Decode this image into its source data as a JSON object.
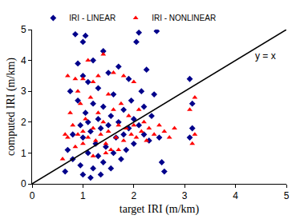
{
  "chart_data": {
    "type": "scatter",
    "x_label": "target IRI (m/km)",
    "y_label": "computed IRI (m/km)",
    "xlim": [
      0,
      5
    ],
    "ylim": [
      0,
      5
    ],
    "xticks": [
      0,
      1,
      2,
      3,
      4,
      5
    ],
    "yticks": [
      0,
      1,
      2,
      3,
      4,
      5
    ],
    "grid": false,
    "legend": "top",
    "annotations": [
      {
        "text": "y = x",
        "x": 4.35,
        "y": 4.15
      }
    ],
    "series": [
      {
        "name": "IRI - LINEAR",
        "color": "#00008b",
        "marker": "diamond",
        "x": [
          0.65,
          0.7,
          0.75,
          0.8,
          0.8,
          0.85,
          0.9,
          0.9,
          0.95,
          0.95,
          1.0,
          1.0,
          1.0,
          1.0,
          1.05,
          1.05,
          1.1,
          1.1,
          1.1,
          1.15,
          1.15,
          1.2,
          1.2,
          1.2,
          1.25,
          1.3,
          1.3,
          1.3,
          1.35,
          1.35,
          1.4,
          1.4,
          1.4,
          1.45,
          1.5,
          1.5,
          1.55,
          1.55,
          1.6,
          1.6,
          1.65,
          1.7,
          1.7,
          1.75,
          1.8,
          1.8,
          1.85,
          1.9,
          1.9,
          1.95,
          2.0,
          2.0,
          2.05,
          2.1,
          2.1,
          2.15,
          2.2,
          2.2,
          2.25,
          2.3,
          2.35,
          2.4,
          2.45,
          2.5,
          2.55,
          2.6,
          3.1,
          3.1,
          3.15,
          3.15
        ],
        "values": [
          0.4,
          1.1,
          3.0,
          0.8,
          1.6,
          4.85,
          2.7,
          3.9,
          0.6,
          1.9,
          0.3,
          1.5,
          3.5,
          4.6,
          2.3,
          4.8,
          1.0,
          2.0,
          3.3,
          0.2,
          1.7,
          0.5,
          2.6,
          4.0,
          1.3,
          0.9,
          2.1,
          3.1,
          0.3,
          1.8,
          0.7,
          2.5,
          4.3,
          1.2,
          1.9,
          3.6,
          0.5,
          2.2,
          1.0,
          2.9,
          1.5,
          2.0,
          3.8,
          0.8,
          1.6,
          2.4,
          1.1,
          1.8,
          3.4,
          2.7,
          1.3,
          2.1,
          4.6,
          1.9,
          4.9,
          3.0,
          1.6,
          2.5,
          3.7,
          1.4,
          2.2,
          2.9,
          4.95,
          1.5,
          0.7,
          0.4,
          1.5,
          3.4,
          2.6,
          1.8
        ]
      },
      {
        "name": "IRI - NONLINEAR",
        "color": "#ff0000",
        "marker": "triangle-up",
        "x": [
          0.65,
          0.7,
          0.7,
          0.75,
          0.8,
          0.85,
          0.9,
          0.9,
          0.95,
          1.0,
          1.0,
          1.0,
          1.05,
          1.1,
          1.1,
          1.15,
          1.2,
          1.2,
          1.25,
          1.3,
          1.3,
          1.35,
          1.4,
          1.4,
          1.45,
          1.5,
          1.5,
          1.55,
          1.6,
          1.6,
          1.65,
          1.7,
          1.75,
          1.8,
          1.8,
          1.85,
          1.9,
          1.95,
          2.0,
          2.0,
          2.05,
          2.1,
          2.15,
          2.2,
          2.25,
          2.3,
          2.4,
          2.5,
          2.6,
          2.7,
          2.8,
          3.1,
          3.15,
          3.2,
          3.2,
          0.6,
          1.2,
          1.45,
          1.7,
          0.85
        ],
        "values": [
          1.6,
          3.5,
          1.5,
          2.3,
          1.9,
          1.2,
          3.0,
          1.6,
          2.6,
          3.4,
          1.7,
          1.3,
          2.1,
          4.0,
          1.5,
          2.8,
          1.8,
          3.3,
          1.4,
          2.3,
          3.5,
          1.6,
          2.0,
          4.2,
          1.3,
          1.7,
          2.9,
          1.1,
          2.4,
          3.6,
          1.5,
          1.9,
          2.6,
          1.4,
          3.5,
          1.8,
          2.2,
          1.6,
          1.9,
          3.3,
          1.5,
          2.4,
          1.7,
          2.0,
          1.4,
          1.8,
          1.6,
          1.9,
          1.7,
          1.5,
          1.8,
          2.4,
          1.3,
          2.8,
          1.6,
          0.8,
          0.9,
          1.0,
          1.1,
          3.4
        ]
      },
      {
        "type": "line",
        "color": "#000000",
        "x": [
          0,
          5
        ],
        "values": [
          0,
          5
        ]
      }
    ]
  }
}
